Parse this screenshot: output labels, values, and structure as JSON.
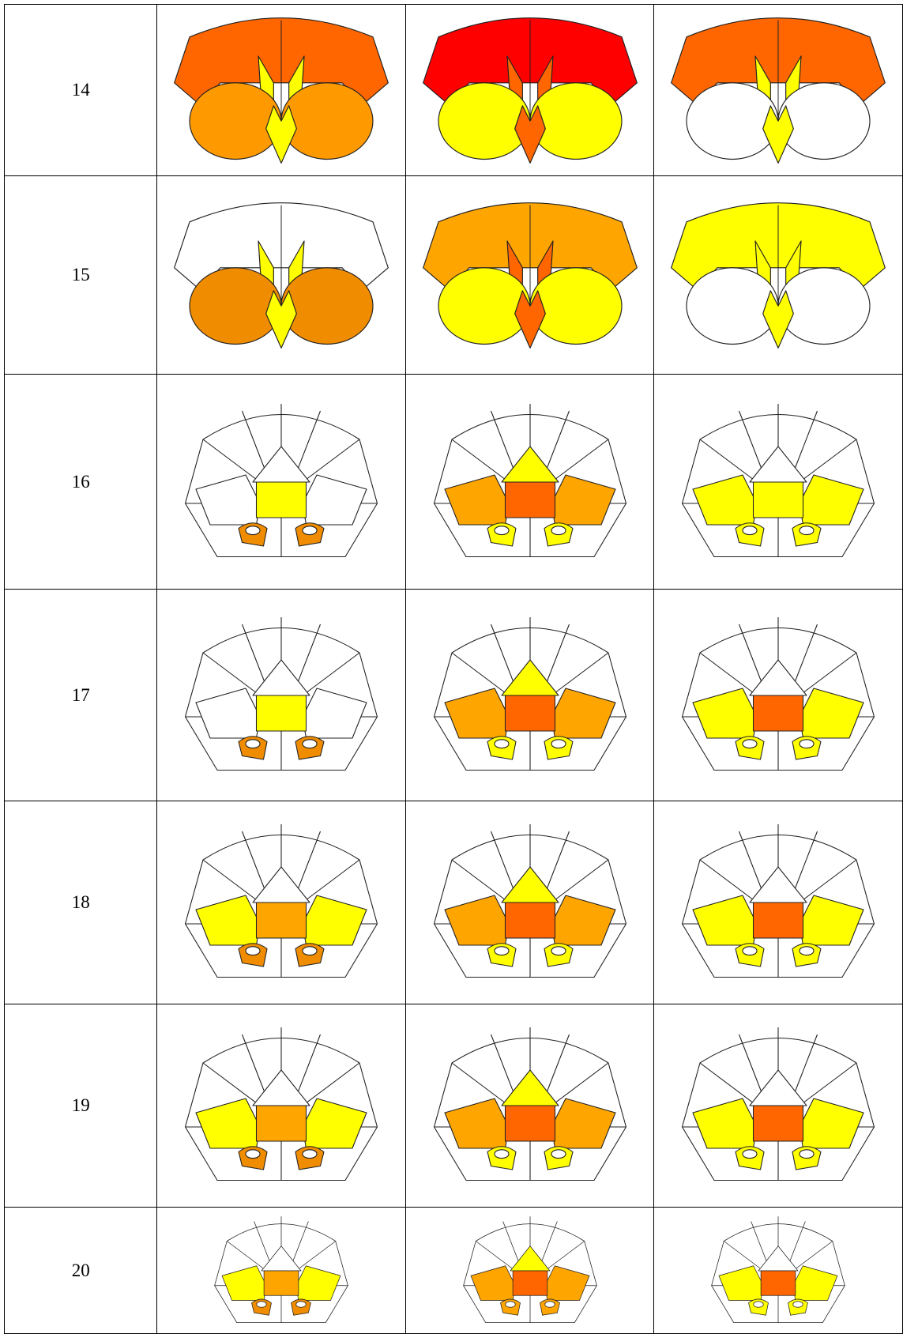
{
  "table": {
    "rows": [
      {
        "label": "14"
      },
      {
        "label": "15"
      },
      {
        "label": "16"
      },
      {
        "label": "17"
      },
      {
        "label": "18"
      },
      {
        "label": "19"
      },
      {
        "label": "20"
      }
    ]
  }
}
